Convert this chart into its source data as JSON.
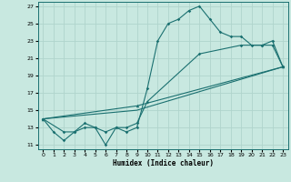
{
  "xlabel": "Humidex (Indice chaleur)",
  "xlim": [
    -0.5,
    23.5
  ],
  "ylim": [
    10.5,
    27.5
  ],
  "xticks": [
    0,
    1,
    2,
    3,
    4,
    5,
    6,
    7,
    8,
    9,
    10,
    11,
    12,
    13,
    14,
    15,
    16,
    17,
    18,
    19,
    20,
    21,
    22,
    23
  ],
  "yticks": [
    11,
    13,
    15,
    17,
    19,
    21,
    23,
    25,
    27
  ],
  "background_color": "#c8e8e0",
  "grid_color": "#b0d4cc",
  "line_color": "#1a7070",
  "curves": {
    "c1": {
      "x": [
        0,
        1,
        2,
        3,
        4,
        5,
        6,
        7,
        8,
        9,
        10,
        11,
        12,
        13,
        14,
        15,
        16,
        17,
        18,
        19,
        20,
        21,
        22,
        23
      ],
      "y": [
        14,
        12.5,
        11.5,
        12.5,
        13,
        13,
        11,
        13,
        12.5,
        13,
        17.5,
        23,
        25,
        25.5,
        26.5,
        27,
        25.5,
        24,
        23.5,
        23.5,
        22.5,
        22.5,
        23,
        20
      ],
      "marker": "D"
    },
    "c2": {
      "x": [
        0,
        2,
        3,
        4,
        5,
        6,
        7,
        8,
        9,
        10,
        15,
        19,
        21,
        22,
        23
      ],
      "y": [
        14,
        12.5,
        12.5,
        13.5,
        13,
        12.5,
        13,
        13,
        13.5,
        16,
        21.5,
        22.5,
        22.5,
        22.5,
        20
      ],
      "marker": "D"
    },
    "c3": {
      "x": [
        0,
        9,
        23
      ],
      "y": [
        14,
        15,
        20
      ],
      "marker": null
    },
    "c4": {
      "x": [
        0,
        9,
        23
      ],
      "y": [
        14,
        15.5,
        20
      ],
      "marker": "^"
    }
  }
}
